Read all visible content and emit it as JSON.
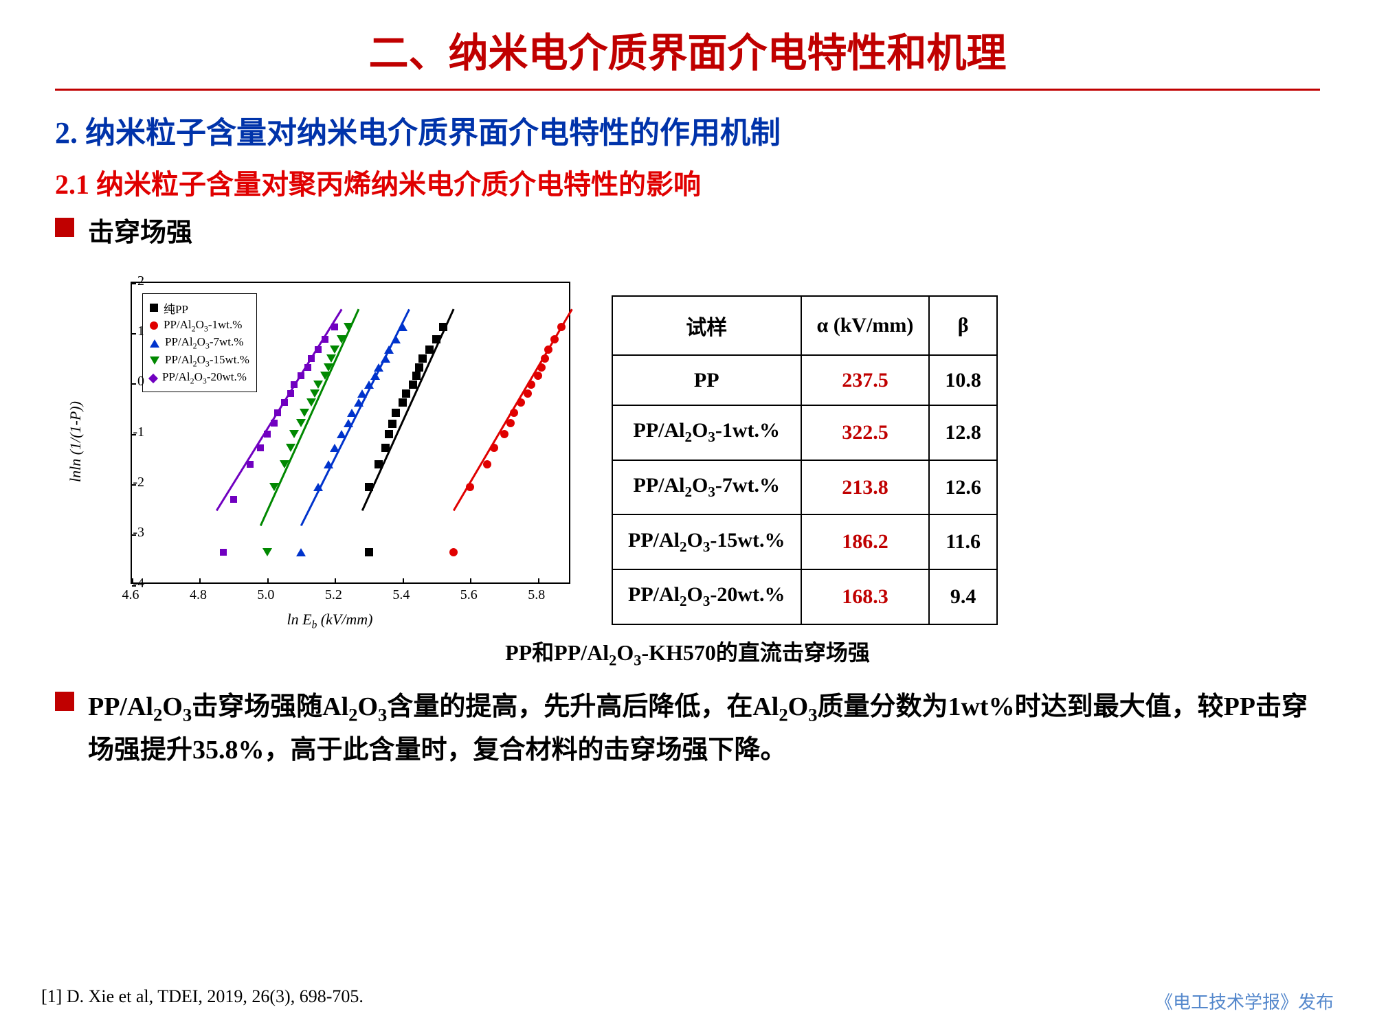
{
  "title": "二、纳米电介质界面介电特性和机理",
  "section": "2. 纳米粒子含量对纳米电介质界面介电特性的作用机制",
  "subsection": "2.1 纳米粒子含量对聚丙烯纳米电介质介电特性的影响",
  "bullet1": "击穿场强",
  "chart": {
    "type": "scatter-line",
    "xlabel": "ln Eₕ (kV/mm)",
    "ylabel": "lnln (1/(1-P))",
    "xlim": [
      4.6,
      5.9
    ],
    "ylim": [
      -4,
      2
    ],
    "xticks": [
      4.6,
      4.8,
      5.0,
      5.2,
      5.4,
      5.6,
      5.8
    ],
    "yticks": [
      -4,
      -3,
      -2,
      -1,
      0,
      1,
      2
    ],
    "background": "#ffffff",
    "border_color": "#000000",
    "series": [
      {
        "name": "纯PP",
        "marker": "square",
        "color": "#000000",
        "points": [
          [
            5.3,
            -3.35
          ],
          [
            5.3,
            -2.05
          ],
          [
            5.33,
            -1.6
          ],
          [
            5.35,
            -1.28
          ],
          [
            5.36,
            -1.0
          ],
          [
            5.37,
            -0.8
          ],
          [
            5.38,
            -0.58
          ],
          [
            5.4,
            -0.38
          ],
          [
            5.41,
            -0.2
          ],
          [
            5.43,
            -0.02
          ],
          [
            5.44,
            0.15
          ],
          [
            5.45,
            0.32
          ],
          [
            5.46,
            0.5
          ],
          [
            5.48,
            0.68
          ],
          [
            5.5,
            0.88
          ],
          [
            5.52,
            1.12
          ]
        ],
        "fit": {
          "x1": 5.28,
          "y1": -2.5,
          "x2": 5.55,
          "y2": 1.5
        }
      },
      {
        "name": "PP/Al₂O₃-1wt.%",
        "marker": "circle",
        "color": "#e00000",
        "points": [
          [
            5.55,
            -3.35
          ],
          [
            5.6,
            -2.05
          ],
          [
            5.65,
            -1.6
          ],
          [
            5.67,
            -1.28
          ],
          [
            5.7,
            -1.0
          ],
          [
            5.72,
            -0.78
          ],
          [
            5.73,
            -0.58
          ],
          [
            5.75,
            -0.38
          ],
          [
            5.77,
            -0.2
          ],
          [
            5.78,
            -0.02
          ],
          [
            5.8,
            0.15
          ],
          [
            5.81,
            0.32
          ],
          [
            5.82,
            0.5
          ],
          [
            5.83,
            0.68
          ],
          [
            5.85,
            0.88
          ],
          [
            5.87,
            1.12
          ]
        ],
        "fit": {
          "x1": 5.55,
          "y1": -2.5,
          "x2": 5.9,
          "y2": 1.5
        }
      },
      {
        "name": "PP/Al₂O₃-7wt.%",
        "marker": "triangle-up",
        "color": "#0033cc",
        "points": [
          [
            5.1,
            -3.35
          ],
          [
            5.15,
            -2.05
          ],
          [
            5.18,
            -1.6
          ],
          [
            5.2,
            -1.28
          ],
          [
            5.22,
            -1.0
          ],
          [
            5.24,
            -0.78
          ],
          [
            5.25,
            -0.58
          ],
          [
            5.27,
            -0.38
          ],
          [
            5.28,
            -0.2
          ],
          [
            5.3,
            -0.02
          ],
          [
            5.32,
            0.15
          ],
          [
            5.33,
            0.32
          ],
          [
            5.35,
            0.5
          ],
          [
            5.36,
            0.68
          ],
          [
            5.38,
            0.88
          ],
          [
            5.4,
            1.12
          ]
        ],
        "fit": {
          "x1": 5.1,
          "y1": -2.8,
          "x2": 5.42,
          "y2": 1.5
        }
      },
      {
        "name": "PP/Al₂O₃-15wt.%",
        "marker": "triangle-down",
        "color": "#008800",
        "points": [
          [
            5.0,
            -3.35
          ],
          [
            5.02,
            -2.05
          ],
          [
            5.05,
            -1.6
          ],
          [
            5.07,
            -1.28
          ],
          [
            5.08,
            -1.0
          ],
          [
            5.1,
            -0.78
          ],
          [
            5.11,
            -0.58
          ],
          [
            5.13,
            -0.38
          ],
          [
            5.14,
            -0.2
          ],
          [
            5.15,
            -0.02
          ],
          [
            5.17,
            0.15
          ],
          [
            5.18,
            0.32
          ],
          [
            5.19,
            0.5
          ],
          [
            5.2,
            0.68
          ],
          [
            5.22,
            0.88
          ],
          [
            5.24,
            1.12
          ]
        ],
        "fit": {
          "x1": 4.98,
          "y1": -2.8,
          "x2": 5.27,
          "y2": 1.5
        }
      },
      {
        "name": "PP/Al₂O₃-20wt.%",
        "marker": "diamond",
        "color": "#7000c0",
        "points": [
          [
            4.87,
            -3.35
          ],
          [
            4.9,
            -2.3
          ],
          [
            4.95,
            -1.6
          ],
          [
            4.98,
            -1.28
          ],
          [
            5.0,
            -1.0
          ],
          [
            5.02,
            -0.78
          ],
          [
            5.03,
            -0.58
          ],
          [
            5.05,
            -0.38
          ],
          [
            5.07,
            -0.2
          ],
          [
            5.08,
            -0.02
          ],
          [
            5.1,
            0.15
          ],
          [
            5.12,
            0.32
          ],
          [
            5.13,
            0.5
          ],
          [
            5.15,
            0.68
          ],
          [
            5.17,
            0.88
          ],
          [
            5.2,
            1.12
          ]
        ],
        "fit": {
          "x1": 4.85,
          "y1": -2.5,
          "x2": 5.22,
          "y2": 1.5
        }
      }
    ]
  },
  "table": {
    "headers": [
      "试样",
      "α (kV/mm)",
      "β"
    ],
    "rows": [
      [
        "PP",
        "237.5",
        "10.8"
      ],
      [
        "PP/Al₂O₃-1wt.%",
        "322.5",
        "12.8"
      ],
      [
        "PP/Al₂O₃-7wt.%",
        "213.8",
        "12.6"
      ],
      [
        "PP/Al₂O₃-15wt.%",
        "186.2",
        "11.6"
      ],
      [
        "PP/Al₂O₃-20wt.%",
        "168.3",
        "9.4"
      ]
    ],
    "alpha_color": "#c00000",
    "border_color": "#000000",
    "fontsize": 30
  },
  "caption": "PP和PP/Al₂O₃-KH570的直流击穿场强",
  "bullet2": "PP/Al₂O₃击穿场强随Al₂O₃含量的提高，先升高后降低，在Al₂O₃质量分数为1wt%时达到最大值，较PP击穿场强提升35.8%，高于此含量时，复合材料的击穿场强下降。",
  "reference": "[1] D. Xie et al, TDEI, 2019, 26(3), 698-705.",
  "footer": "《电工技术学报》发布"
}
